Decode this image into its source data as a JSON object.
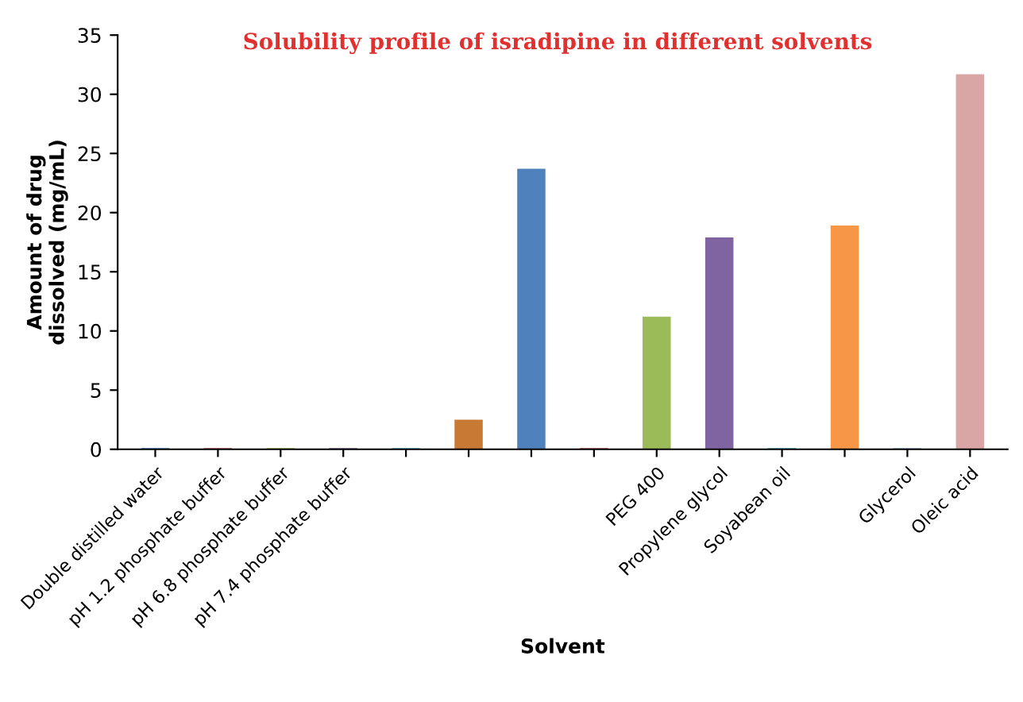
{
  "chart_data": {
    "type": "bar",
    "title": "Solubility profile of isradipine in different solvents",
    "xlabel": "Solvent",
    "ylabel": "Amount of drug\ndissolved (mg/mL)",
    "categories": [
      "Double distilled water",
      "pH 1.2 phosphate buffer",
      "pH 6.8 phosphate buffer",
      "pH 7.4 phosphate buffer",
      null,
      null,
      null,
      null,
      "PEG 400",
      "Propylene glycol",
      "Soyabean oil",
      null,
      "Glycerol",
      "Oleic acid"
    ],
    "values": [
      0.1,
      0.1,
      0.1,
      0.1,
      0.1,
      2.5,
      23.7,
      0.1,
      11.2,
      17.9,
      0.1,
      18.9,
      0.1,
      31.7
    ],
    "colors": [
      "#4f81bd",
      "#c0504d",
      "#9bbb59",
      "#8064a2",
      "#4bacc6",
      "#c87a34",
      "#4f81bd",
      "#c0504d",
      "#9bbb59",
      "#8064a2",
      "#4bacc6",
      "#f79646",
      "#95b3d7",
      "#d9a5a5"
    ],
    "ylim": [
      0,
      35
    ],
    "yticks": [
      0,
      5,
      10,
      15,
      20,
      25,
      30,
      35
    ],
    "grid": false,
    "legend": false
  }
}
